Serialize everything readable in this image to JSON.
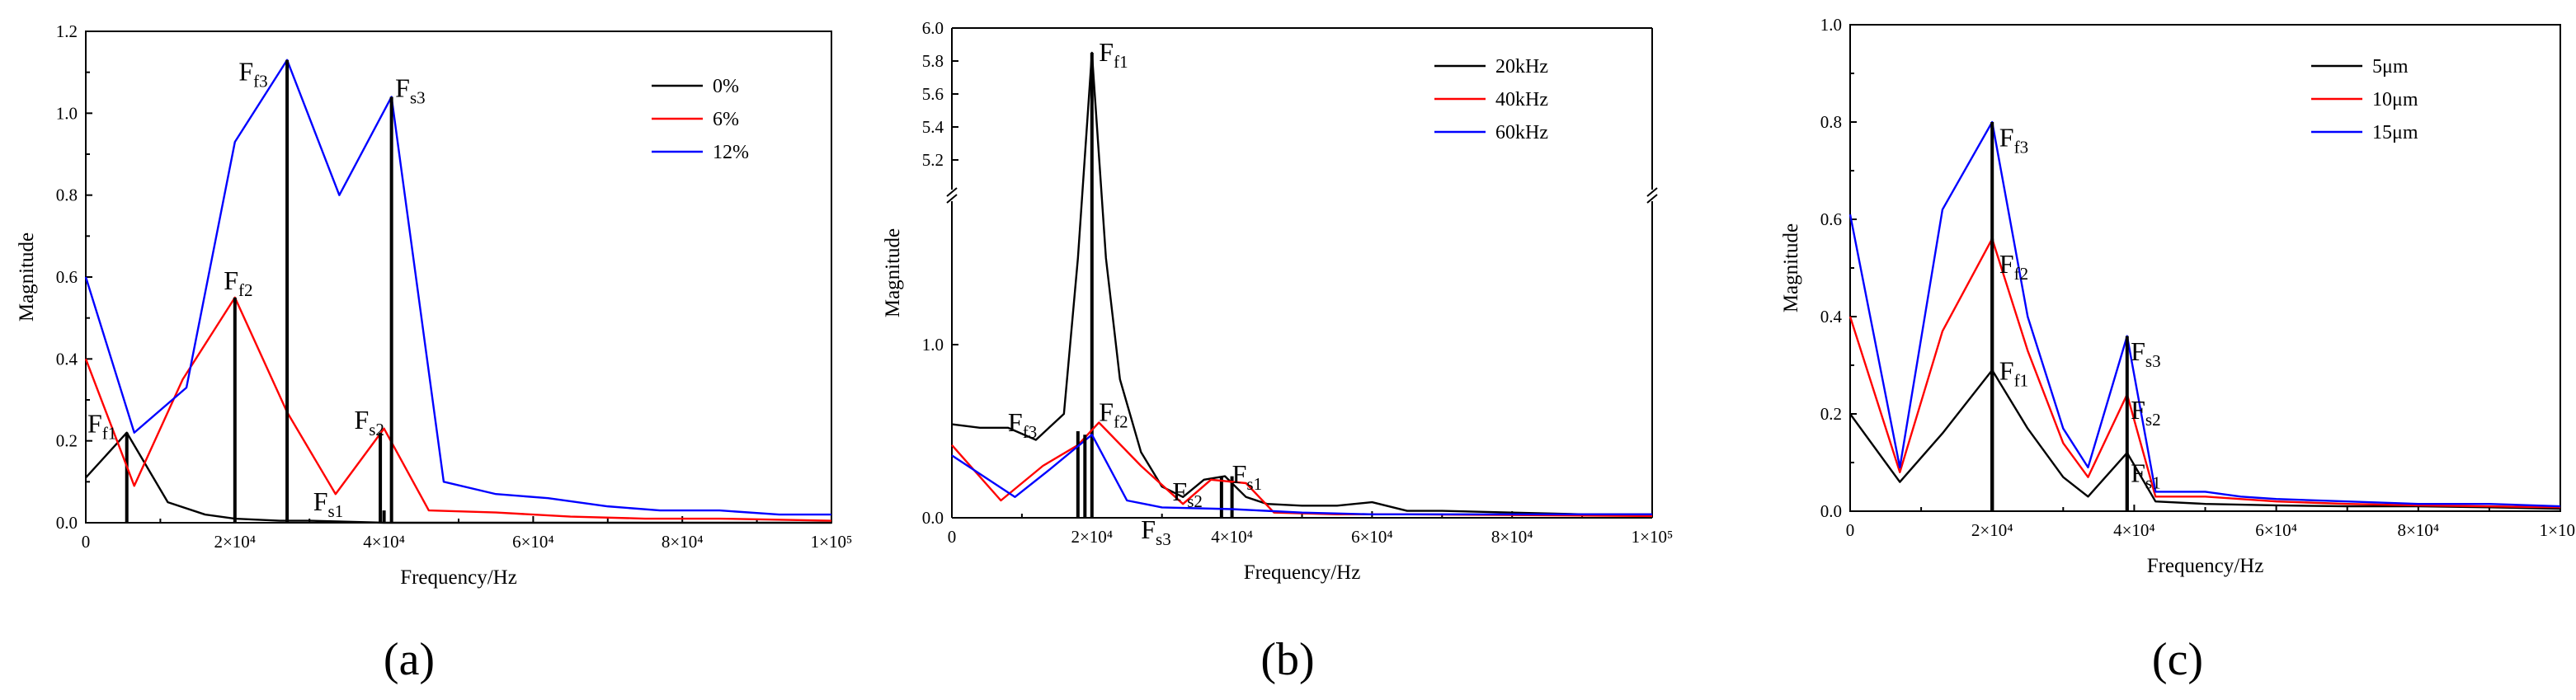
{
  "chart_data": [
    {
      "type": "line",
      "panel_label": "(a)",
      "xlabel": "Frequency/Hz",
      "ylabel": "Magnitude",
      "xlim": [
        0,
        100000
      ],
      "ylim": [
        0,
        1.2
      ],
      "xticks": [
        0,
        20000,
        40000,
        60000,
        80000,
        100000
      ],
      "xtick_labels": [
        "0",
        "2×10⁴",
        "4×10⁴",
        "6×10⁴",
        "8×10⁴",
        "1×10⁵"
      ],
      "yticks": [
        0,
        0.2,
        0.4,
        0.6,
        0.8,
        1.0,
        1.2
      ],
      "ytick_labels": [
        "0.0",
        "0.2",
        "0.4",
        "0.6",
        "0.8",
        "1.0",
        "1.2"
      ],
      "legend_position": "top-right",
      "series": [
        {
          "name": "0%",
          "color": "#000000",
          "points": [
            [
              0,
              0.11
            ],
            [
              5500,
              0.22
            ],
            [
              11000,
              0.05
            ],
            [
              16000,
              0.02
            ],
            [
              20000,
              0.01
            ],
            [
              26000,
              0.005
            ],
            [
              30000,
              0.005
            ],
            [
              40000,
              0.0
            ],
            [
              50000,
              0.0
            ],
            [
              100000,
              0.0
            ]
          ],
          "spikes": [
            [
              5500,
              0.22
            ],
            [
              40000,
              0.03
            ]
          ]
        },
        {
          "name": "6%",
          "color": "#ff0000",
          "points": [
            [
              0,
              0.4
            ],
            [
              6500,
              0.09
            ],
            [
              13000,
              0.35
            ],
            [
              20000,
              0.55
            ],
            [
              27000,
              0.27
            ],
            [
              33500,
              0.07
            ],
            [
              40000,
              0.23
            ],
            [
              46000,
              0.03
            ],
            [
              55000,
              0.025
            ],
            [
              65000,
              0.015
            ],
            [
              75000,
              0.01
            ],
            [
              85000,
              0.01
            ],
            [
              100000,
              0.005
            ]
          ],
          "spikes": [
            [
              20000,
              0.55
            ],
            [
              39500,
              0.22
            ]
          ]
        },
        {
          "name": "12%",
          "color": "#0000ff",
          "points": [
            [
              0,
              0.6
            ],
            [
              6500,
              0.22
            ],
            [
              13500,
              0.33
            ],
            [
              20000,
              0.93
            ],
            [
              27000,
              1.13
            ],
            [
              34000,
              0.8
            ],
            [
              41000,
              1.04
            ],
            [
              48000,
              0.1
            ],
            [
              55000,
              0.07
            ],
            [
              62000,
              0.06
            ],
            [
              70000,
              0.04
            ],
            [
              77000,
              0.03
            ],
            [
              85000,
              0.03
            ],
            [
              93000,
              0.02
            ],
            [
              100000,
              0.02
            ]
          ],
          "spikes": [
            [
              27000,
              1.13
            ],
            [
              41000,
              1.04
            ]
          ]
        }
      ],
      "annotations": [
        {
          "main": "F",
          "sub": "f1",
          "x": 0,
          "y": 0.22
        },
        {
          "main": "F",
          "sub": "f2",
          "x": 18500,
          "y": 0.57
        },
        {
          "main": "F",
          "sub": "f3",
          "x": 20500,
          "y": 1.08
        },
        {
          "main": "F",
          "sub": "s1",
          "x": 30500,
          "y": 0.03
        },
        {
          "main": "F",
          "sub": "s2",
          "x": 36000,
          "y": 0.23
        },
        {
          "main": "F",
          "sub": "s3",
          "x": 41500,
          "y": 1.04
        }
      ]
    },
    {
      "type": "line",
      "panel_label": "(b)",
      "xlabel": "Frequency/Hz",
      "ylabel": "Magnitude",
      "xlim": [
        0,
        100000
      ],
      "broken_axis": true,
      "ylim_lower": [
        0,
        1.8
      ],
      "ylim_upper": [
        5.0,
        6.0
      ],
      "xticks": [
        0,
        20000,
        40000,
        60000,
        80000,
        100000
      ],
      "xtick_labels": [
        "0",
        "2×10⁴",
        "4×10⁴",
        "6×10⁴",
        "8×10⁴",
        "1×10⁵"
      ],
      "yticks_lower": [
        0,
        1.0
      ],
      "ytick_labels_lower": [
        "0.0",
        "1.0"
      ],
      "yticks_upper": [
        5.2,
        5.4,
        5.6,
        5.8,
        6.0
      ],
      "ytick_labels_upper": [
        "5.2",
        "5.4",
        "5.6",
        "5.8",
        "6.0"
      ],
      "legend_position": "top-right",
      "series": [
        {
          "name": "20kHz",
          "color": "#000000",
          "points": [
            [
              0,
              0.54
            ],
            [
              4000,
              0.52
            ],
            [
              8000,
              0.52
            ],
            [
              12000,
              0.45
            ],
            [
              16000,
              0.6
            ],
            [
              18000,
              1.5
            ],
            [
              20000,
              5.85
            ],
            [
              22000,
              1.5
            ],
            [
              24000,
              0.8
            ],
            [
              27000,
              0.38
            ],
            [
              30000,
              0.18
            ],
            [
              33000,
              0.12
            ],
            [
              36000,
              0.22
            ],
            [
              39000,
              0.24
            ],
            [
              42000,
              0.12
            ],
            [
              45000,
              0.08
            ],
            [
              50000,
              0.07
            ],
            [
              55000,
              0.07
            ],
            [
              60000,
              0.09
            ],
            [
              65000,
              0.04
            ],
            [
              70000,
              0.04
            ],
            [
              80000,
              0.03
            ],
            [
              90000,
              0.02
            ],
            [
              100000,
              0.02
            ]
          ],
          "spikes": [
            [
              20000,
              5.85
            ],
            [
              38500,
              0.24
            ],
            [
              40000,
              0.24
            ]
          ]
        },
        {
          "name": "40kHz",
          "color": "#ff0000",
          "points": [
            [
              0,
              0.42
            ],
            [
              7000,
              0.1
            ],
            [
              13000,
              0.3
            ],
            [
              18000,
              0.42
            ],
            [
              21000,
              0.55
            ],
            [
              27000,
              0.3
            ],
            [
              33000,
              0.08
            ],
            [
              37000,
              0.22
            ],
            [
              42000,
              0.2
            ],
            [
              46000,
              0.03
            ],
            [
              55000,
              0.02
            ],
            [
              65000,
              0.02
            ],
            [
              100000,
              0.01
            ]
          ],
          "spikes": [
            [
              18000,
              0.5
            ]
          ]
        },
        {
          "name": "60kHz",
          "color": "#0000ff",
          "points": [
            [
              0,
              0.36
            ],
            [
              9000,
              0.12
            ],
            [
              14000,
              0.28
            ],
            [
              20000,
              0.48
            ],
            [
              25000,
              0.1
            ],
            [
              30000,
              0.06
            ],
            [
              40000,
              0.05
            ],
            [
              50000,
              0.03
            ],
            [
              60000,
              0.02
            ],
            [
              70000,
              0.02
            ],
            [
              80000,
              0.02
            ],
            [
              100000,
              0.02
            ]
          ],
          "spikes": [
            [
              19000,
              0.48
            ]
          ]
        }
      ],
      "annotations": [
        {
          "main": "F",
          "sub": "f1",
          "x": 21000,
          "y": 5.8
        },
        {
          "main": "F",
          "sub": "f2",
          "x": 21000,
          "y": 0.56
        },
        {
          "main": "F",
          "sub": "f3",
          "x": 8000,
          "y": 0.5
        },
        {
          "main": "F",
          "sub": "s1",
          "x": 40000,
          "y": 0.2
        },
        {
          "main": "F",
          "sub": "s2",
          "x": 31500,
          "y": 0.1
        },
        {
          "main": "F",
          "sub": "s3",
          "x": 27000,
          "y": -0.12
        }
      ]
    },
    {
      "type": "line",
      "panel_label": "(c)",
      "xlabel": "Frequency/Hz",
      "ylabel": "Magnitude",
      "xlim": [
        0,
        100000
      ],
      "ylim": [
        0,
        1.0
      ],
      "xticks": [
        0,
        20000,
        40000,
        60000,
        80000,
        100000
      ],
      "xtick_labels": [
        "0",
        "2×10⁴",
        "4×10⁴",
        "6×10⁴",
        "8×10⁴",
        "1×10⁵"
      ],
      "yticks": [
        0,
        0.2,
        0.4,
        0.6,
        0.8,
        1.0
      ],
      "ytick_labels": [
        "0.0",
        "0.2",
        "0.4",
        "0.6",
        "0.8",
        "1.0"
      ],
      "legend_position": "top-right",
      "series": [
        {
          "name": "5μm",
          "color": "#000000",
          "points": [
            [
              0,
              0.2
            ],
            [
              7000,
              0.06
            ],
            [
              13000,
              0.16
            ],
            [
              20000,
              0.29
            ],
            [
              25000,
              0.17
            ],
            [
              30000,
              0.07
            ],
            [
              33500,
              0.03
            ],
            [
              39000,
              0.12
            ],
            [
              43000,
              0.02
            ],
            [
              50000,
              0.015
            ],
            [
              60000,
              0.012
            ],
            [
              70000,
              0.01
            ],
            [
              80000,
              0.01
            ],
            [
              90000,
              0.008
            ],
            [
              100000,
              0.005
            ]
          ],
          "spikes": [
            [
              20000,
              0.29
            ],
            [
              39000,
              0.12
            ]
          ]
        },
        {
          "name": "10μm",
          "color": "#ff0000",
          "points": [
            [
              0,
              0.4
            ],
            [
              7000,
              0.08
            ],
            [
              13000,
              0.37
            ],
            [
              20000,
              0.56
            ],
            [
              25000,
              0.33
            ],
            [
              30000,
              0.14
            ],
            [
              33500,
              0.07
            ],
            [
              39000,
              0.24
            ],
            [
              43000,
              0.03
            ],
            [
              50000,
              0.03
            ],
            [
              60000,
              0.02
            ],
            [
              70000,
              0.015
            ],
            [
              80000,
              0.012
            ],
            [
              90000,
              0.01
            ],
            [
              100000,
              0.008
            ]
          ],
          "spikes": [
            [
              20000,
              0.56
            ]
          ]
        },
        {
          "name": "15μm",
          "color": "#0000ff",
          "points": [
            [
              0,
              0.61
            ],
            [
              7000,
              0.09
            ],
            [
              13000,
              0.62
            ],
            [
              20000,
              0.8
            ],
            [
              25000,
              0.4
            ],
            [
              30000,
              0.17
            ],
            [
              33500,
              0.09
            ],
            [
              39000,
              0.36
            ],
            [
              43000,
              0.04
            ],
            [
              50000,
              0.04
            ],
            [
              55000,
              0.03
            ],
            [
              60000,
              0.025
            ],
            [
              70000,
              0.02
            ],
            [
              80000,
              0.015
            ],
            [
              90000,
              0.015
            ],
            [
              100000,
              0.01
            ]
          ],
          "spikes": [
            [
              20000,
              0.8
            ],
            [
              39000,
              0.36
            ]
          ]
        }
      ],
      "annotations": [
        {
          "main": "F",
          "sub": "f1",
          "x": 21000,
          "y": 0.27
        },
        {
          "main": "F",
          "sub": "f2",
          "x": 21000,
          "y": 0.49
        },
        {
          "main": "F",
          "sub": "f3",
          "x": 21000,
          "y": 0.75
        },
        {
          "main": "F",
          "sub": "s1",
          "x": 39500,
          "y": 0.06
        },
        {
          "main": "F",
          "sub": "s2",
          "x": 39500,
          "y": 0.19
        },
        {
          "main": "F",
          "sub": "s3",
          "x": 39500,
          "y": 0.31
        }
      ]
    }
  ]
}
